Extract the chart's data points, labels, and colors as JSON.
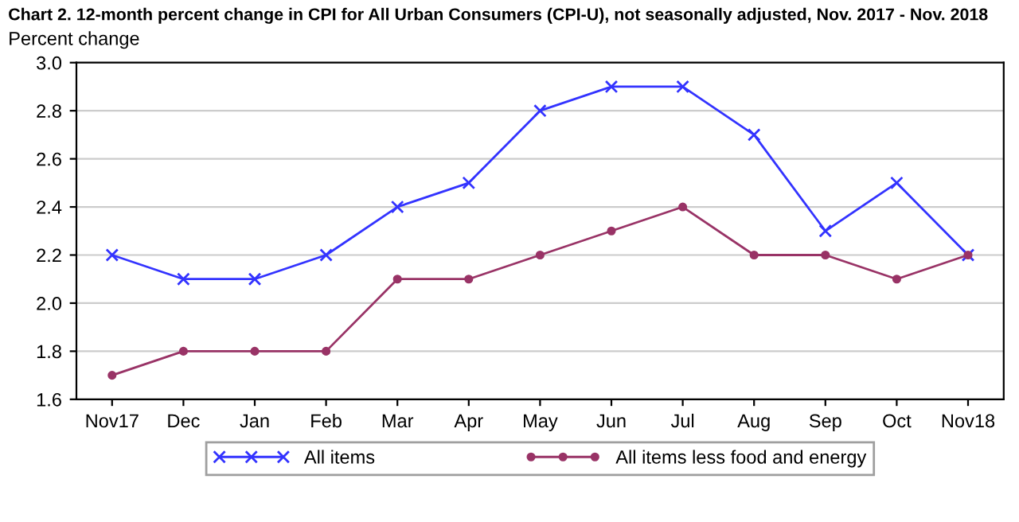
{
  "chart_data": {
    "type": "line",
    "title": "Chart 2. 12-month percent change in CPI for All Urban Consumers (CPI-U), not seasonally adjusted, Nov. 2017 - Nov. 2018",
    "ylabel": "Percent change",
    "categories": [
      "Nov17",
      "Dec",
      "Jan",
      "Feb",
      "Mar",
      "Apr",
      "May",
      "Jun",
      "Jul",
      "Aug",
      "Sep",
      "Oct",
      "Nov18"
    ],
    "series": [
      {
        "name": "All items",
        "color": "#3333ff",
        "marker": "cross",
        "values": [
          2.2,
          2.1,
          2.1,
          2.2,
          2.4,
          2.5,
          2.8,
          2.9,
          2.9,
          2.7,
          2.3,
          2.5,
          2.2
        ]
      },
      {
        "name": "All items less food and energy",
        "color": "#993366",
        "marker": "circle",
        "values": [
          1.7,
          1.8,
          1.8,
          1.8,
          2.1,
          2.1,
          2.2,
          2.3,
          2.4,
          2.2,
          2.2,
          2.1,
          2.2
        ]
      }
    ],
    "ylim": [
      1.6,
      3.0
    ],
    "yticks": [
      {
        "value": 1.6,
        "label": "1.6"
      },
      {
        "value": 1.8,
        "label": "1.8"
      },
      {
        "value": 2.0,
        "label": "2.0"
      },
      {
        "value": 2.2,
        "label": "2.2"
      },
      {
        "value": 2.4,
        "label": "2.4"
      },
      {
        "value": 2.6,
        "label": "2.6"
      },
      {
        "value": 2.8,
        "label": "2.8"
      },
      {
        "value": 3.0,
        "label": "3.0"
      }
    ],
    "grid": "y",
    "legend": "bottom",
    "line_style": "solid"
  }
}
